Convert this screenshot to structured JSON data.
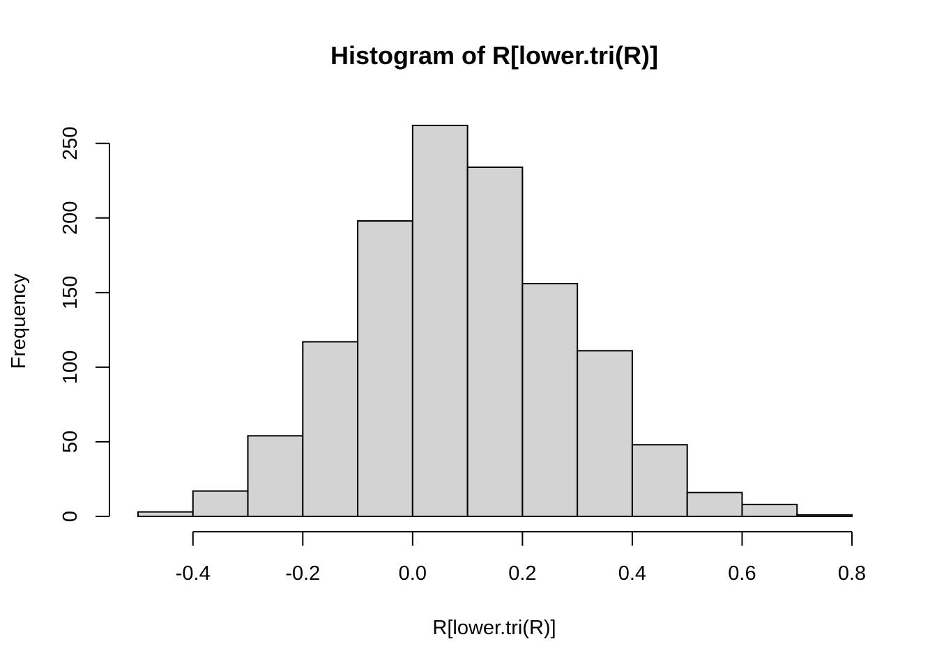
{
  "chart_data": {
    "type": "bar",
    "title": "Histogram of R[lower.tri(R)]",
    "xlabel": "R[lower.tri(R)]",
    "ylabel": "Frequency",
    "bins": [
      {
        "x0": -0.5,
        "x1": -0.4,
        "count": 3
      },
      {
        "x0": -0.4,
        "x1": -0.3,
        "count": 17
      },
      {
        "x0": -0.3,
        "x1": -0.2,
        "count": 54
      },
      {
        "x0": -0.2,
        "x1": -0.1,
        "count": 117
      },
      {
        "x0": -0.1,
        "x1": 0.0,
        "count": 198
      },
      {
        "x0": 0.0,
        "x1": 0.1,
        "count": 262
      },
      {
        "x0": 0.1,
        "x1": 0.2,
        "count": 234
      },
      {
        "x0": 0.2,
        "x1": 0.3,
        "count": 156
      },
      {
        "x0": 0.3,
        "x1": 0.4,
        "count": 111
      },
      {
        "x0": 0.4,
        "x1": 0.5,
        "count": 48
      },
      {
        "x0": 0.5,
        "x1": 0.6,
        "count": 16
      },
      {
        "x0": 0.6,
        "x1": 0.7,
        "count": 8
      },
      {
        "x0": 0.7,
        "x1": 0.8,
        "count": 1
      }
    ],
    "xlim": [
      -0.5,
      0.8
    ],
    "ylim": [
      0,
      262
    ],
    "x_ticks": [
      -0.4,
      -0.2,
      0.0,
      0.2,
      0.4,
      0.6,
      0.8
    ],
    "x_tick_labels": [
      "-0.4",
      "-0.2",
      "0.0",
      "0.2",
      "0.4",
      "0.6",
      "0.8"
    ],
    "y_ticks": [
      0,
      50,
      100,
      150,
      200,
      250
    ],
    "y_tick_labels": [
      "0",
      "50",
      "100",
      "150",
      "200",
      "250"
    ],
    "grid": false,
    "bar_color": "#d3d3d3"
  }
}
